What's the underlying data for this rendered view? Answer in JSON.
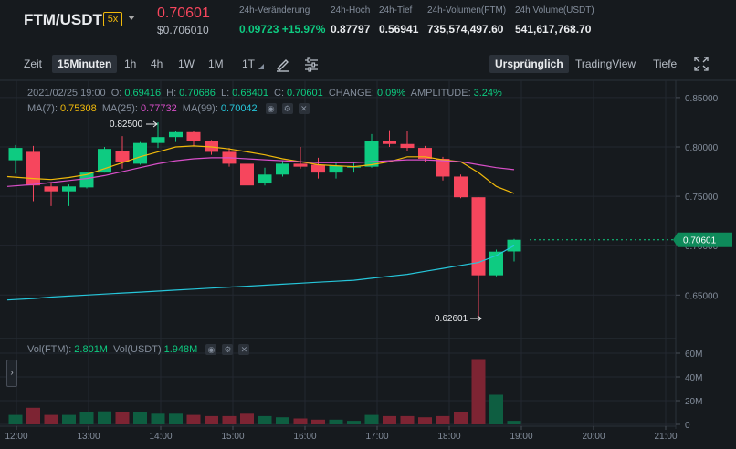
{
  "header": {
    "symbol": "FTM/USDT",
    "leverage": "5x",
    "last_price": "0.70601",
    "last_price_usd": "$0.706010",
    "stats": [
      {
        "label": "24h-Veränderung",
        "value": "0.09723 +15.97%",
        "green": true
      },
      {
        "label": "24h-Hoch",
        "value": "0.87797",
        "green": false
      },
      {
        "label": "24h-Tief",
        "value": "0.56941",
        "green": false
      },
      {
        "label": "24h-Volumen(FTM)",
        "value": "735,574,497.60",
        "green": false
      },
      {
        "label": "24h Volume(USDT)",
        "value": "541,617,768.70",
        "green": false
      }
    ]
  },
  "toolbar": {
    "intervals": [
      "Zeit",
      "15Minuten",
      "1h",
      "4h",
      "1W",
      "1M",
      "1T"
    ],
    "selected_interval": "15Minuten",
    "views": [
      "Ursprünglich",
      "TradingView",
      "Tiefe"
    ],
    "selected_view": "Ursprünglich",
    "icons": [
      "draw-icon",
      "settings-icon",
      "fullscreen-icon"
    ]
  },
  "ohlc": {
    "date": "2021/02/25 19:00",
    "o_label": "O:",
    "o": "0.69416",
    "h_label": "H:",
    "h": "0.70686",
    "l_label": "L:",
    "l": "0.68401",
    "c_label": "C:",
    "c": "0.70601",
    "change_label": "CHANGE:",
    "change": "0.09%",
    "amp_label": "AMPLITUDE:",
    "amp": "3.24%"
  },
  "ma": {
    "ma7_label": "MA(7):",
    "ma7": "0.75308",
    "ma25_label": "MA(25):",
    "ma25": "0.77732",
    "ma99_label": "MA(99):",
    "ma99": "0.70042"
  },
  "vol": {
    "ftm_label": "Vol(FTM):",
    "ftm": "2.801M",
    "usdt_label": "Vol(USDT)",
    "usdt": "1.948M"
  },
  "annotations": {
    "high": "0.82500",
    "low": "0.62601",
    "current": "0.70601"
  },
  "colors": {
    "up": "#0ecb81",
    "down": "#f6465d",
    "ma7": "#f0b90b",
    "ma25": "#d84fc8",
    "ma99": "#26c6da",
    "bg": "#161a1e",
    "grid": "#232830"
  },
  "chart_data": {
    "type": "candlestick",
    "price_axis": {
      "ticks": [
        "0.85000",
        "0.80000",
        "0.75000",
        "0.70000",
        "0.65000"
      ],
      "values": [
        0.85,
        0.8,
        0.75,
        0.7,
        0.65
      ]
    },
    "volume_axis": {
      "ticks": [
        "60M",
        "40M",
        "20M",
        "0"
      ],
      "values": [
        60,
        40,
        20,
        0
      ]
    },
    "time_axis": {
      "ticks": [
        "12:00",
        "13:00",
        "14:00",
        "15:00",
        "16:00",
        "17:00",
        "18:00",
        "19:00",
        "20:00",
        "21:00"
      ]
    },
    "candles": [
      {
        "o": 0.7865,
        "h": 0.802,
        "l": 0.773,
        "c": 0.799,
        "v": 8
      },
      {
        "o": 0.795,
        "h": 0.801,
        "l": 0.745,
        "c": 0.761,
        "v": 14
      },
      {
        "o": 0.76,
        "h": 0.764,
        "l": 0.74,
        "c": 0.755,
        "v": 8
      },
      {
        "o": 0.755,
        "h": 0.762,
        "l": 0.74,
        "c": 0.76,
        "v": 8
      },
      {
        "o": 0.759,
        "h": 0.774,
        "l": 0.758,
        "c": 0.774,
        "v": 10
      },
      {
        "o": 0.774,
        "h": 0.8,
        "l": 0.774,
        "c": 0.798,
        "v": 11
      },
      {
        "o": 0.796,
        "h": 0.811,
        "l": 0.778,
        "c": 0.785,
        "v": 10
      },
      {
        "o": 0.783,
        "h": 0.805,
        "l": 0.782,
        "c": 0.804,
        "v": 10
      },
      {
        "o": 0.804,
        "h": 0.825,
        "l": 0.799,
        "c": 0.81,
        "v": 9
      },
      {
        "o": 0.81,
        "h": 0.816,
        "l": 0.805,
        "c": 0.815,
        "v": 9
      },
      {
        "o": 0.815,
        "h": 0.816,
        "l": 0.801,
        "c": 0.806,
        "v": 8
      },
      {
        "o": 0.806,
        "h": 0.807,
        "l": 0.792,
        "c": 0.795,
        "v": 7
      },
      {
        "o": 0.795,
        "h": 0.799,
        "l": 0.78,
        "c": 0.783,
        "v": 7
      },
      {
        "o": 0.783,
        "h": 0.787,
        "l": 0.754,
        "c": 0.761,
        "v": 9
      },
      {
        "o": 0.763,
        "h": 0.779,
        "l": 0.761,
        "c": 0.772,
        "v": 7
      },
      {
        "o": 0.772,
        "h": 0.786,
        "l": 0.77,
        "c": 0.783,
        "v": 6
      },
      {
        "o": 0.783,
        "h": 0.8,
        "l": 0.778,
        "c": 0.78,
        "v": 5
      },
      {
        "o": 0.782,
        "h": 0.789,
        "l": 0.768,
        "c": 0.774,
        "v": 4
      },
      {
        "o": 0.774,
        "h": 0.785,
        "l": 0.768,
        "c": 0.781,
        "v": 4
      },
      {
        "o": 0.78,
        "h": 0.785,
        "l": 0.774,
        "c": 0.78,
        "v": 3
      },
      {
        "o": 0.78,
        "h": 0.813,
        "l": 0.779,
        "c": 0.806,
        "v": 8
      },
      {
        "o": 0.806,
        "h": 0.817,
        "l": 0.8,
        "c": 0.803,
        "v": 7
      },
      {
        "o": 0.803,
        "h": 0.816,
        "l": 0.796,
        "c": 0.799,
        "v": 7
      },
      {
        "o": 0.799,
        "h": 0.801,
        "l": 0.785,
        "c": 0.788,
        "v": 6
      },
      {
        "o": 0.788,
        "h": 0.79,
        "l": 0.766,
        "c": 0.77,
        "v": 7
      },
      {
        "o": 0.77,
        "h": 0.772,
        "l": 0.748,
        "c": 0.749,
        "v": 10
      },
      {
        "o": 0.749,
        "h": 0.749,
        "l": 0.626,
        "c": 0.67,
        "v": 55
      },
      {
        "o": 0.67,
        "h": 0.696,
        "l": 0.669,
        "c": 0.694,
        "v": 25
      },
      {
        "o": 0.6942,
        "h": 0.7069,
        "l": 0.684,
        "c": 0.706,
        "v": 3
      }
    ],
    "ma7": [
      0.77,
      0.768,
      0.767,
      0.769,
      0.772,
      0.778,
      0.784,
      0.79,
      0.795,
      0.8,
      0.801,
      0.8,
      0.798,
      0.795,
      0.792,
      0.788,
      0.785,
      0.782,
      0.781,
      0.78,
      0.782,
      0.785,
      0.79,
      0.79,
      0.787,
      0.785,
      0.774,
      0.76,
      0.753
    ],
    "ma25": [
      0.76,
      0.762,
      0.764,
      0.766,
      0.768,
      0.771,
      0.775,
      0.779,
      0.783,
      0.786,
      0.788,
      0.789,
      0.789,
      0.788,
      0.787,
      0.786,
      0.785,
      0.784,
      0.784,
      0.784,
      0.785,
      0.786,
      0.787,
      0.787,
      0.786,
      0.785,
      0.782,
      0.779,
      0.777
    ],
    "ma99": [
      0.645,
      0.6465,
      0.648,
      0.649,
      0.65,
      0.651,
      0.652,
      0.653,
      0.654,
      0.655,
      0.656,
      0.657,
      0.658,
      0.659,
      0.66,
      0.661,
      0.662,
      0.663,
      0.664,
      0.665,
      0.667,
      0.669,
      0.671,
      0.674,
      0.677,
      0.68,
      0.683,
      0.69,
      0.7
    ]
  }
}
